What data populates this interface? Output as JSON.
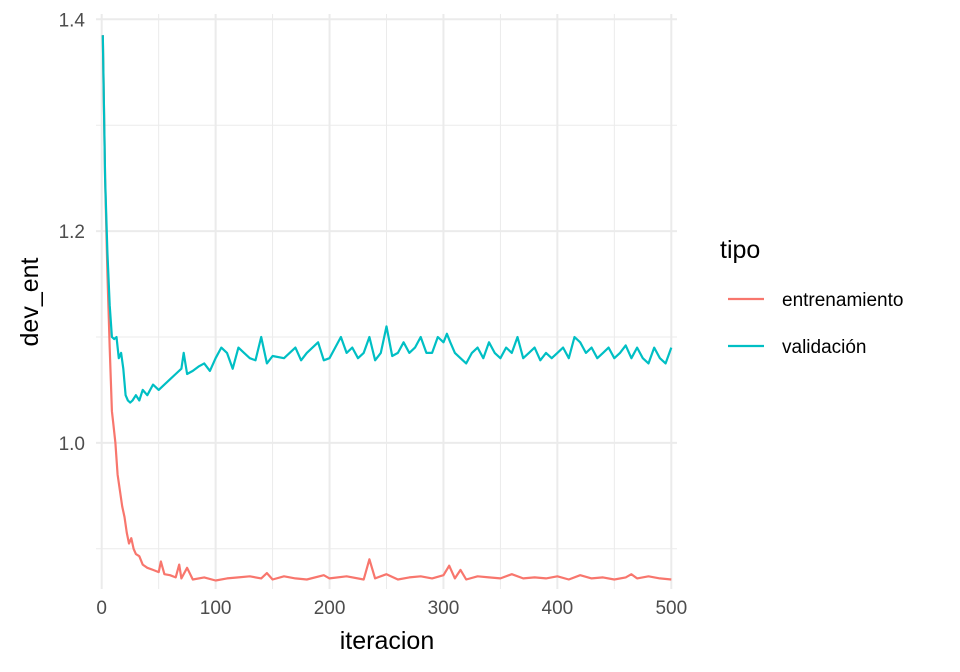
{
  "chart_data": {
    "type": "line",
    "title": "",
    "xlabel": "iteracion",
    "ylabel": "dev_ent",
    "xlim": [
      -5,
      505
    ],
    "ylim": [
      0.862,
      1.405
    ],
    "x_ticks": [
      0,
      100,
      200,
      300,
      400,
      500
    ],
    "x_tick_labels": [
      "0",
      "100",
      "200",
      "300",
      "400",
      "500"
    ],
    "y_ticks": [
      1.0,
      1.2,
      1.4
    ],
    "y_tick_labels": [
      "1.0",
      "1.2",
      "1.4"
    ],
    "grid": true,
    "legend": {
      "title": "tipo",
      "position": "right"
    },
    "series": [
      {
        "name": "entrenamiento",
        "color": "#F8766D",
        "points": [
          [
            1,
            1.385
          ],
          [
            3,
            1.25
          ],
          [
            5,
            1.16
          ],
          [
            7,
            1.09
          ],
          [
            9,
            1.03
          ],
          [
            10,
            1.02
          ],
          [
            12,
            1.0
          ],
          [
            14,
            0.97
          ],
          [
            16,
            0.955
          ],
          [
            18,
            0.94
          ],
          [
            20,
            0.93
          ],
          [
            22,
            0.915
          ],
          [
            24,
            0.905
          ],
          [
            26,
            0.91
          ],
          [
            28,
            0.9
          ],
          [
            30,
            0.895
          ],
          [
            33,
            0.893
          ],
          [
            36,
            0.885
          ],
          [
            40,
            0.882
          ],
          [
            45,
            0.88
          ],
          [
            50,
            0.878
          ],
          [
            52,
            0.888
          ],
          [
            55,
            0.876
          ],
          [
            60,
            0.875
          ],
          [
            65,
            0.873
          ],
          [
            68,
            0.885
          ],
          [
            70,
            0.872
          ],
          [
            75,
            0.882
          ],
          [
            80,
            0.871
          ],
          [
            90,
            0.873
          ],
          [
            100,
            0.87
          ],
          [
            110,
            0.872
          ],
          [
            120,
            0.873
          ],
          [
            130,
            0.874
          ],
          [
            140,
            0.872
          ],
          [
            145,
            0.877
          ],
          [
            150,
            0.871
          ],
          [
            160,
            0.874
          ],
          [
            170,
            0.872
          ],
          [
            180,
            0.871
          ],
          [
            195,
            0.875
          ],
          [
            200,
            0.872
          ],
          [
            215,
            0.874
          ],
          [
            230,
            0.871
          ],
          [
            235,
            0.89
          ],
          [
            240,
            0.872
          ],
          [
            250,
            0.876
          ],
          [
            260,
            0.871
          ],
          [
            270,
            0.873
          ],
          [
            280,
            0.874
          ],
          [
            290,
            0.872
          ],
          [
            300,
            0.875
          ],
          [
            305,
            0.884
          ],
          [
            310,
            0.872
          ],
          [
            315,
            0.88
          ],
          [
            320,
            0.871
          ],
          [
            330,
            0.874
          ],
          [
            340,
            0.873
          ],
          [
            350,
            0.872
          ],
          [
            360,
            0.876
          ],
          [
            370,
            0.872
          ],
          [
            380,
            0.873
          ],
          [
            390,
            0.872
          ],
          [
            400,
            0.874
          ],
          [
            410,
            0.871
          ],
          [
            420,
            0.875
          ],
          [
            430,
            0.872
          ],
          [
            440,
            0.873
          ],
          [
            450,
            0.871
          ],
          [
            460,
            0.873
          ],
          [
            465,
            0.876
          ],
          [
            470,
            0.872
          ],
          [
            480,
            0.874
          ],
          [
            490,
            0.872
          ],
          [
            500,
            0.871
          ]
        ]
      },
      {
        "name": "validación",
        "color": "#00BFC4",
        "points": [
          [
            1,
            1.385
          ],
          [
            3,
            1.25
          ],
          [
            5,
            1.18
          ],
          [
            7,
            1.13
          ],
          [
            9,
            1.1
          ],
          [
            11,
            1.098
          ],
          [
            13,
            1.1
          ],
          [
            15,
            1.08
          ],
          [
            17,
            1.085
          ],
          [
            19,
            1.07
          ],
          [
            21,
            1.045
          ],
          [
            23,
            1.04
          ],
          [
            25,
            1.038
          ],
          [
            27,
            1.04
          ],
          [
            30,
            1.045
          ],
          [
            33,
            1.04
          ],
          [
            36,
            1.05
          ],
          [
            40,
            1.045
          ],
          [
            45,
            1.055
          ],
          [
            50,
            1.05
          ],
          [
            55,
            1.055
          ],
          [
            60,
            1.06
          ],
          [
            65,
            1.065
          ],
          [
            70,
            1.07
          ],
          [
            72,
            1.085
          ],
          [
            75,
            1.065
          ],
          [
            80,
            1.068
          ],
          [
            85,
            1.072
          ],
          [
            90,
            1.075
          ],
          [
            95,
            1.068
          ],
          [
            100,
            1.08
          ],
          [
            105,
            1.09
          ],
          [
            110,
            1.085
          ],
          [
            115,
            1.07
          ],
          [
            120,
            1.09
          ],
          [
            125,
            1.085
          ],
          [
            130,
            1.08
          ],
          [
            135,
            1.078
          ],
          [
            140,
            1.1
          ],
          [
            145,
            1.075
          ],
          [
            150,
            1.082
          ],
          [
            160,
            1.08
          ],
          [
            170,
            1.09
          ],
          [
            175,
            1.078
          ],
          [
            180,
            1.085
          ],
          [
            190,
            1.095
          ],
          [
            195,
            1.078
          ],
          [
            200,
            1.08
          ],
          [
            205,
            1.09
          ],
          [
            210,
            1.1
          ],
          [
            215,
            1.085
          ],
          [
            220,
            1.09
          ],
          [
            225,
            1.08
          ],
          [
            230,
            1.085
          ],
          [
            235,
            1.1
          ],
          [
            240,
            1.078
          ],
          [
            245,
            1.085
          ],
          [
            250,
            1.11
          ],
          [
            255,
            1.082
          ],
          [
            260,
            1.085
          ],
          [
            265,
            1.095
          ],
          [
            270,
            1.085
          ],
          [
            275,
            1.09
          ],
          [
            280,
            1.1
          ],
          [
            285,
            1.085
          ],
          [
            290,
            1.085
          ],
          [
            295,
            1.1
          ],
          [
            300,
            1.095
          ],
          [
            303,
            1.103
          ],
          [
            306,
            1.095
          ],
          [
            310,
            1.085
          ],
          [
            315,
            1.08
          ],
          [
            320,
            1.075
          ],
          [
            325,
            1.085
          ],
          [
            330,
            1.09
          ],
          [
            335,
            1.08
          ],
          [
            340,
            1.095
          ],
          [
            345,
            1.085
          ],
          [
            350,
            1.08
          ],
          [
            355,
            1.09
          ],
          [
            360,
            1.085
          ],
          [
            365,
            1.1
          ],
          [
            370,
            1.08
          ],
          [
            375,
            1.085
          ],
          [
            380,
            1.09
          ],
          [
            385,
            1.078
          ],
          [
            390,
            1.085
          ],
          [
            395,
            1.08
          ],
          [
            400,
            1.085
          ],
          [
            405,
            1.09
          ],
          [
            410,
            1.08
          ],
          [
            415,
            1.1
          ],
          [
            420,
            1.095
          ],
          [
            425,
            1.085
          ],
          [
            430,
            1.09
          ],
          [
            435,
            1.08
          ],
          [
            440,
            1.085
          ],
          [
            445,
            1.09
          ],
          [
            450,
            1.08
          ],
          [
            455,
            1.085
          ],
          [
            460,
            1.092
          ],
          [
            465,
            1.08
          ],
          [
            470,
            1.09
          ],
          [
            475,
            1.08
          ],
          [
            480,
            1.075
          ],
          [
            485,
            1.09
          ],
          [
            490,
            1.08
          ],
          [
            495,
            1.075
          ],
          [
            500,
            1.09
          ]
        ]
      }
    ]
  }
}
